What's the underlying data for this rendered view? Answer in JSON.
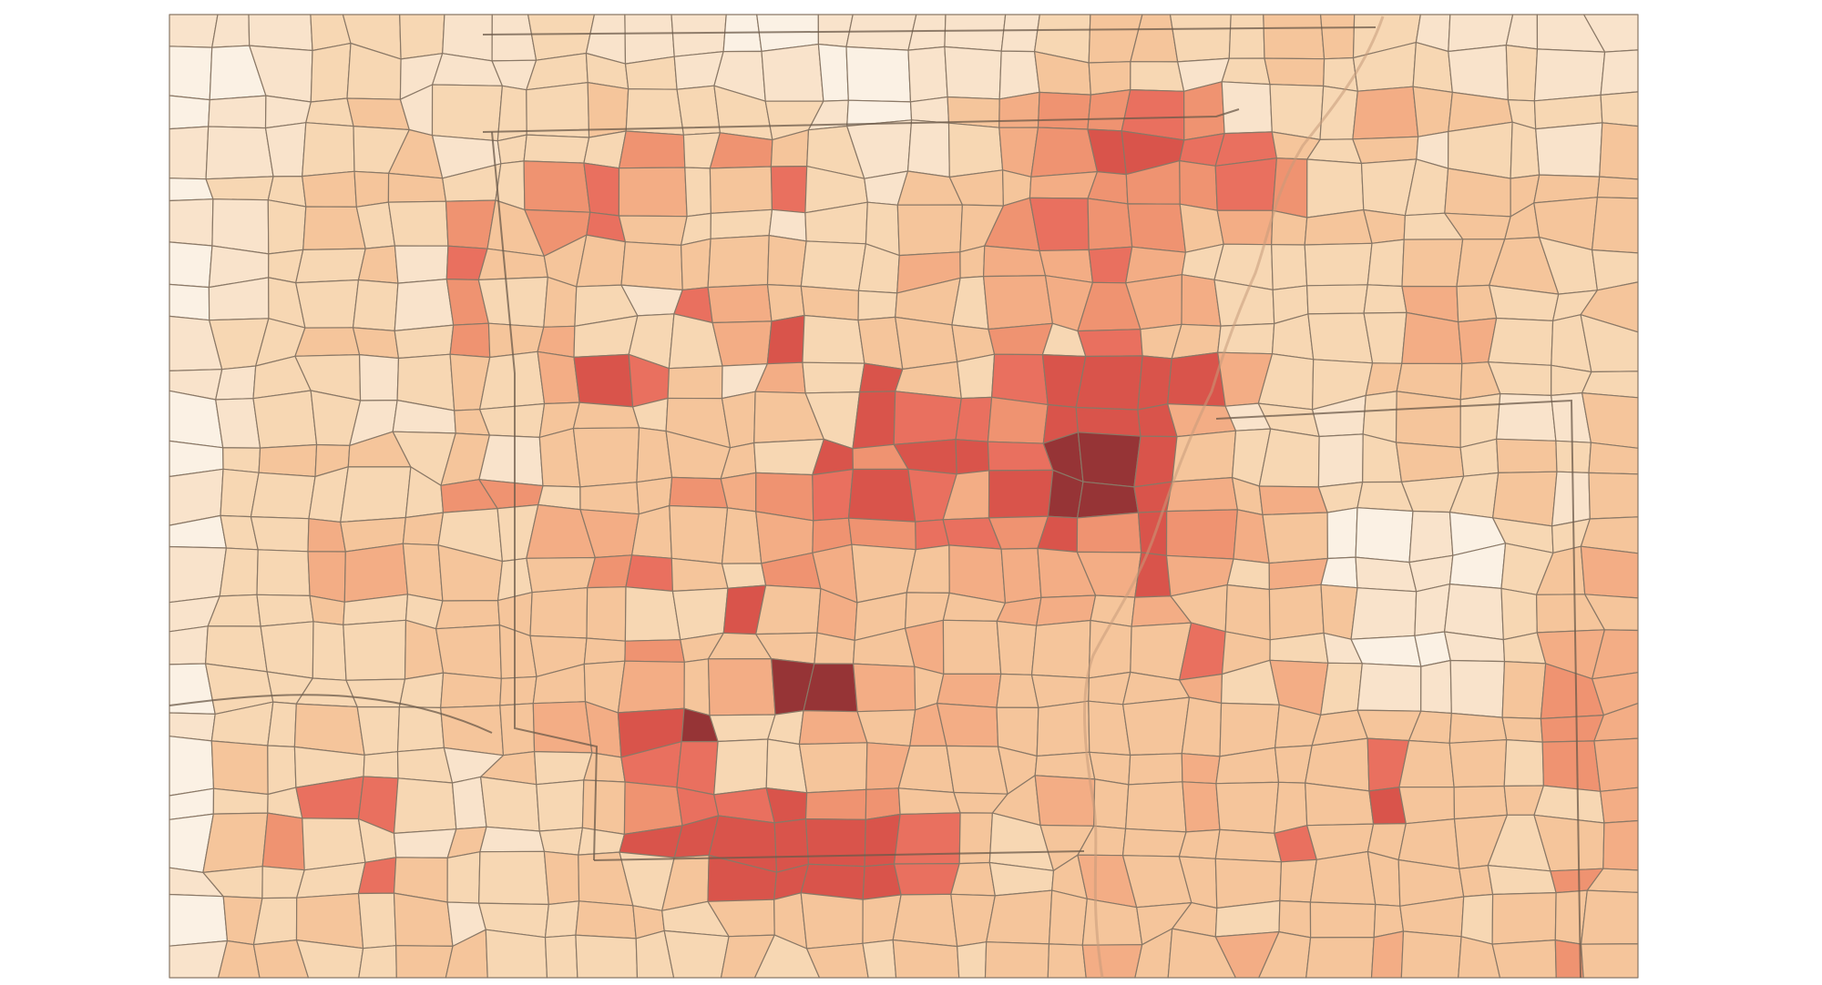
{
  "map": {
    "kind": "county choropleth",
    "palette": {
      "0": "#fbf1e4",
      "1": "#f9e3cb",
      "2": "#f7d7b3",
      "3": "#f5c59b",
      "4": "#f3ad85",
      "5": "#ef9371",
      "6": "#e9705f",
      "7": "#d9544b",
      "8": "#963436"
    },
    "grid": {
      "rows": [
        "11122211211100111112332233211111",
        "00122111222111001113321232221211",
        "01123122232222101345565122433222",
        "11122312225253211245776632312213",
        "02233322564236213334555652223333",
        "11232253563221223356553433323333",
        "01223163333333224344642222233322",
        "01222152321643323244544222243223",
        "12233253422247233352633222244222",
        "11221232476314273267777422333222",
        "01221132332333276657774121232113",
        "02333231333332757768873221232323",
        "12222255233545676478874342222313",
        "02243322443334556657575430010223",
        "12244332356325433444474240110234",
        "12232233332273433344343333111233",
        "12222333335333334333336321001244",
        "02222233334348843433334242111354",
        "12232233447822434433333333333354",
        "03222213236622343333334333633254",
        "02266212235667553334334333733324",
        "03522131227777776323333363333234",
        "12226322332377776323433333333253",
        "03232312233233333333333233332333",
        "13322332222232323233433433433353"
      ]
    }
  }
}
